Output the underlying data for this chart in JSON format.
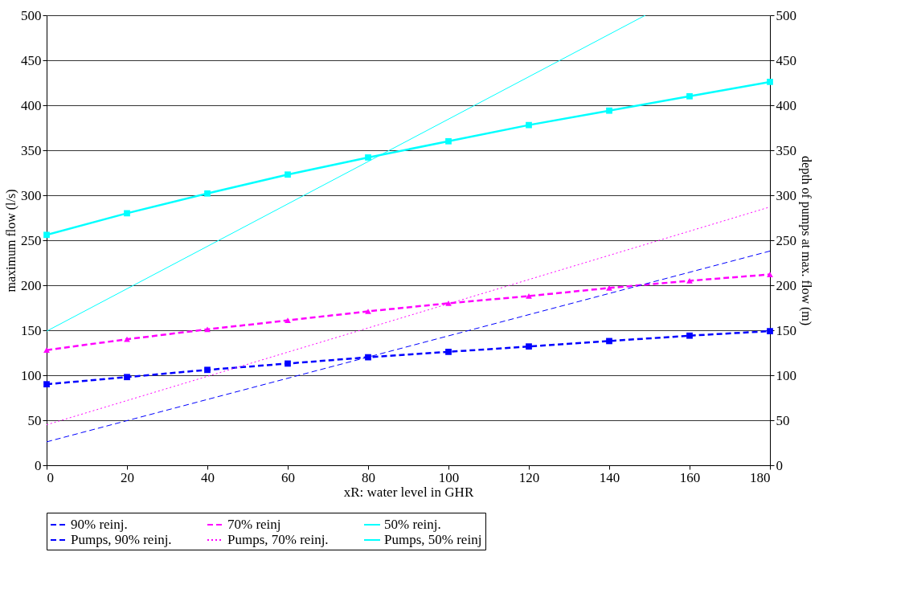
{
  "chart_data": {
    "type": "line",
    "xlabel": "xR: water level in GHR",
    "ylabel": "maximum flow (l/s)",
    "y2label": "depth of pumps at max. flow (m)",
    "x": [
      0,
      20,
      40,
      60,
      80,
      100,
      120,
      140,
      160,
      180
    ],
    "series": [
      {
        "name": "90% reinj.",
        "color": "#0000ff",
        "marker": "square",
        "line_style": "dashed",
        "values": [
          90,
          98,
          106,
          113,
          120,
          126,
          132,
          138,
          144,
          149
        ]
      },
      {
        "name": "70% reinj",
        "color": "#ff00ff",
        "marker": "triangle",
        "line_style": "dashed",
        "values": [
          128,
          140,
          151,
          161,
          171,
          180,
          188,
          197,
          205,
          212
        ]
      },
      {
        "name": "50% reinj.",
        "color": "#00ffff",
        "marker": "square",
        "line_style": "solid",
        "values": [
          256,
          280,
          302,
          323,
          342,
          360,
          378,
          394,
          410,
          426
        ]
      },
      {
        "name": "Pumps, 90% reinj.",
        "color": "#0000ff",
        "marker": "none",
        "line_style": "dashed",
        "axis": "y2",
        "x": [
          0,
          180
        ],
        "values": [
          26,
          238
        ]
      },
      {
        "name": "Pumps, 70% reinj.",
        "color": "#ff00ff",
        "marker": "none",
        "line_style": "dotted",
        "axis": "y2",
        "x": [
          0,
          180
        ],
        "values": [
          45,
          287
        ]
      },
      {
        "name": "Pumps, 50% reinj",
        "color": "#00ffff",
        "marker": "none",
        "line_style": "solid",
        "axis": "y2",
        "x": [
          0,
          149
        ],
        "values": [
          149,
          500
        ]
      }
    ],
    "xlim": [
      0,
      180
    ],
    "xticks": [
      0,
      20,
      40,
      60,
      80,
      100,
      120,
      140,
      160,
      180
    ],
    "ylim": [
      0,
      500
    ],
    "yticks": [
      0,
      50,
      100,
      150,
      200,
      250,
      300,
      350,
      400,
      450,
      500
    ],
    "y2lim": [
      0,
      500
    ],
    "y2ticks": [
      0,
      50,
      100,
      150,
      200,
      250,
      300,
      350,
      400,
      450,
      500
    ],
    "grid": "y",
    "legend": "bottom"
  }
}
